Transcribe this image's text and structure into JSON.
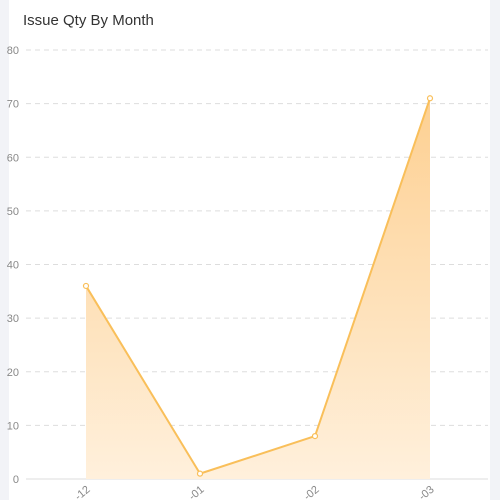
{
  "chart_data": {
    "type": "area",
    "title": "Issue Qty By Month",
    "categories": [
      "-12",
      "-01",
      "-02",
      "-03"
    ],
    "series": [
      {
        "values": [
          36,
          1,
          8,
          71
        ]
      }
    ],
    "ylim": [
      0,
      80
    ],
    "yticks": [
      "0",
      "10",
      "20",
      "30",
      "40",
      "50",
      "60",
      "70",
      "80"
    ],
    "grid": true,
    "colors": {
      "line": "#f9bf5a",
      "fill_top": "#fdd092",
      "fill_bottom": "#fff0dc",
      "grid": "#dddddd"
    }
  }
}
